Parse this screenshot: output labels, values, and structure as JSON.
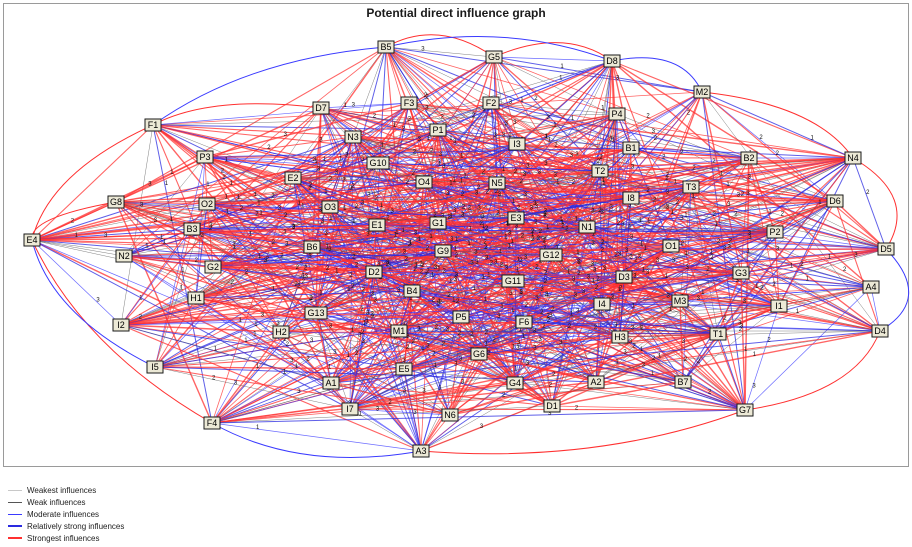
{
  "title": "Potential direct influence graph",
  "nodes": [
    "B5",
    "G5",
    "D8",
    "M2",
    "F1",
    "D7",
    "F3",
    "F2",
    "P4",
    "N3",
    "P1",
    "I3",
    "B1",
    "B2",
    "N4",
    "P3",
    "G10",
    "T2",
    "E2",
    "O4",
    "N5",
    "I8",
    "T3",
    "G8",
    "O2",
    "O3",
    "E3",
    "D6",
    "B3",
    "E1",
    "G1",
    "N1",
    "P2",
    "E4",
    "B6",
    "G9",
    "G12",
    "O1",
    "D5",
    "N2",
    "G2",
    "D2",
    "G11",
    "D3",
    "G3",
    "H1",
    "B4",
    "A4",
    "I4",
    "M3",
    "I1",
    "I2",
    "G13",
    "P5",
    "F6",
    "T1",
    "D4",
    "H2",
    "M1",
    "H3",
    "I5",
    "G6",
    "E5",
    "A1",
    "G4",
    "A2",
    "B7",
    "I7",
    "N6",
    "D1",
    "G7",
    "F4",
    "A3"
  ],
  "edge_labels": [
    "1",
    "2",
    "3"
  ],
  "legend": [
    {
      "label": "Weakest influences",
      "color": "#c8c8c8"
    },
    {
      "label": "Weak influences",
      "color": "#555555"
    },
    {
      "label": "Moderate influences",
      "color": "#3a3aff"
    },
    {
      "label": "Relatively strong influences",
      "color": "#2a2ae0"
    },
    {
      "label": "Strongest influences",
      "color": "#ff3030"
    }
  ]
}
